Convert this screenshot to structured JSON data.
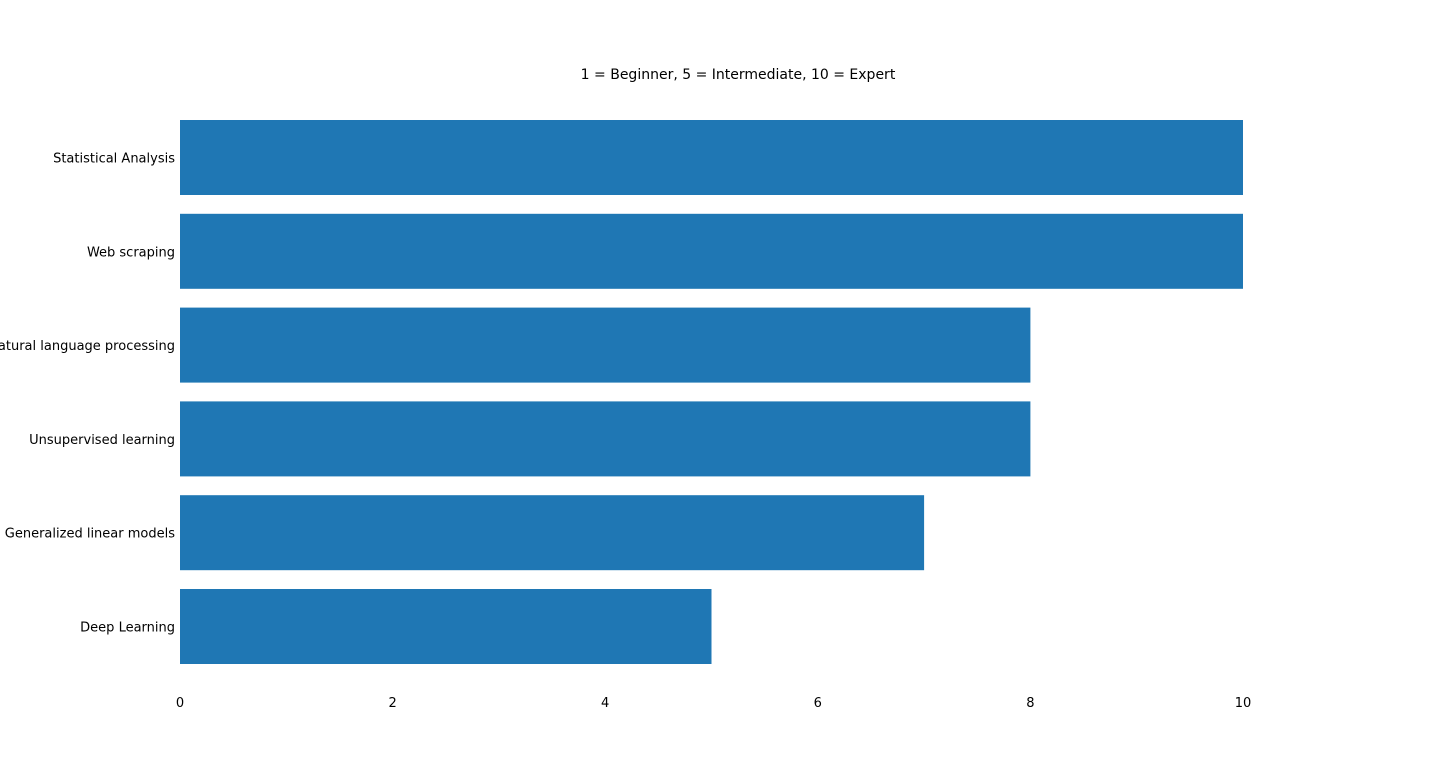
{
  "chart_data": {
    "type": "bar",
    "orientation": "horizontal",
    "title": "1 = Beginner, 5 = Intermediate, 10 = Expert",
    "xlabel": "",
    "ylabel": "",
    "categories": [
      "Statistical Analysis",
      "Web scraping",
      "Natural language processing",
      "Unsupervised learning",
      "Generalized linear models",
      "Deep Learning"
    ],
    "values": [
      10,
      10,
      8,
      8,
      7,
      5
    ],
    "xlim": [
      0,
      10
    ],
    "xticks": [
      0,
      2,
      4,
      6,
      8,
      10
    ],
    "xtick_labels": [
      "0",
      "2",
      "4",
      "6",
      "8",
      "10"
    ],
    "grid": false,
    "legend": "none",
    "bar_color": "#1f77b4"
  }
}
